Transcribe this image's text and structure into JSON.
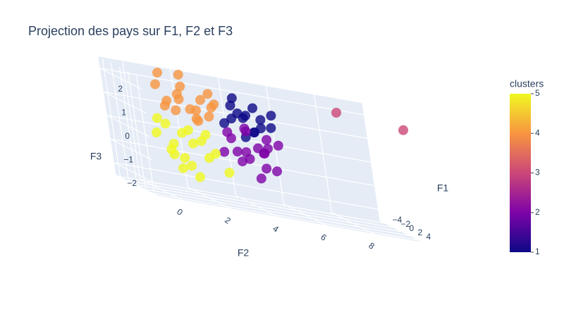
{
  "chart_data": {
    "type": "scatter3d",
    "title": "Projection des pays sur F1, F2 et F3",
    "x_label": "F1",
    "y_label": "F2",
    "z_label": "F3",
    "xlim": [
      -5,
      5
    ],
    "ylim": [
      -1,
      10
    ],
    "zlim": [
      -2.5,
      2.5
    ],
    "xticks": [
      {
        "value": -4,
        "label": "−4"
      },
      {
        "value": -2,
        "label": "−2"
      },
      0,
      2,
      4
    ],
    "yticks": [
      0,
      2,
      4,
      6,
      8
    ],
    "zticks": [
      {
        "value": -2,
        "label": "−2"
      },
      {
        "value": -1,
        "label": "−1"
      },
      0,
      1,
      2
    ],
    "x": [
      -3,
      -2.5,
      -2,
      -3.5,
      -2,
      -1.5,
      -3,
      -2.2,
      -1.8,
      -2.8,
      -3.2,
      -1.5,
      -2.5,
      -2,
      -3.8,
      -1,
      0,
      -0.5,
      0.5,
      -1,
      0,
      1,
      0.5,
      -0.5,
      0.2,
      1,
      -1.2,
      0.8,
      0,
      -0.3,
      1.5,
      0.3,
      -0.8,
      -3,
      4.5,
      -1,
      0,
      -2,
      0.5,
      -1.5,
      0,
      1,
      -0.5,
      -2.5,
      -2,
      0.8,
      -1,
      1.5,
      -0.5,
      0,
      -1.2,
      1,
      -1.8,
      1,
      2,
      1.5,
      2.5,
      3,
      1,
      2,
      3.5,
      2.8,
      1.8,
      4,
      2.2,
      1.2,
      3.2,
      0.5,
      4.5,
      2.6,
      1.5
    ],
    "y": [
      4,
      4.5,
      5,
      4.2,
      3.8,
      4.6,
      5.2,
      4.8,
      5.4,
      3.6,
      4.9,
      4,
      5.6,
      4.3,
      4.6,
      3.5,
      4,
      4.5,
      3.8,
      5,
      3.2,
      4.2,
      5,
      3.6,
      4.8,
      3.5,
      4.2,
      4.5,
      5.3,
      3,
      4.4,
      3.9,
      4.8,
      8.5,
      10,
      1.5,
      2,
      1.8,
      1.2,
      2.5,
      0.8,
      1.8,
      2.6,
      1,
      1.8,
      1,
      2.2,
      1.5,
      0.5,
      2.8,
      0.9,
      2.5,
      2.9,
      0,
      0.5,
      1,
      0.8,
      0.2,
      1.5,
      1.2,
      0.5,
      1.8,
      0.3,
      0.8,
      2.2,
      0.6,
      1.5,
      0.2,
      1,
      2.6,
      2
    ],
    "z": [
      1.5,
      1.2,
      0.8,
      1.8,
      1,
      0.6,
      1.1,
      1.6,
      0.9,
      0.7,
      0.5,
      1.3,
      1.4,
      0.3,
      1,
      0.2,
      -0.5,
      0,
      -0.2,
      0.4,
      0.5,
      -1.2,
      -0.8,
      -0.3,
      0.1,
      -0.6,
      0.6,
      -0.1,
      0.3,
      -0.4,
      -0.7,
      0.8,
      -0.2,
      2,
      2.2,
      1.5,
      1.2,
      2,
      1.8,
      1.6,
      1.4,
      0.9,
      1,
      2.4,
      2.5,
      1.1,
      0.7,
      1.3,
      2,
      1.6,
      1.1,
      1.5,
      1.9,
      0,
      -0.3,
      0.2,
      -0.8,
      -0.5,
      -0.2,
      0.4,
      -1.2,
      -0.6,
      0.5,
      -1,
      -0.4,
      -0.8,
      0.1,
      0.6,
      -1.4,
      -1.1,
      0.3
    ],
    "clusters": [
      1,
      1,
      1,
      1,
      1,
      1,
      1,
      1,
      1,
      1,
      1,
      1,
      1,
      1,
      1,
      2,
      2,
      2,
      2,
      2,
      2,
      2,
      2,
      2,
      2,
      2,
      2,
      2,
      2,
      2,
      2,
      2,
      2,
      3,
      3,
      4,
      4,
      4,
      4,
      4,
      4,
      4,
      4,
      4,
      4,
      4,
      4,
      4,
      4,
      4,
      4,
      4,
      4,
      5,
      5,
      5,
      5,
      5,
      5,
      5,
      5,
      5,
      5,
      5,
      5,
      5,
      5,
      5,
      5,
      5,
      5
    ],
    "colorbar_title": "clusters",
    "clim": [
      1,
      5
    ],
    "cticks": [
      1,
      2,
      3,
      4,
      5
    ],
    "colorscale": [
      "#0d0887",
      "#7e03a8",
      "#cc4778",
      "#f89540",
      "#f0f921"
    ]
  }
}
